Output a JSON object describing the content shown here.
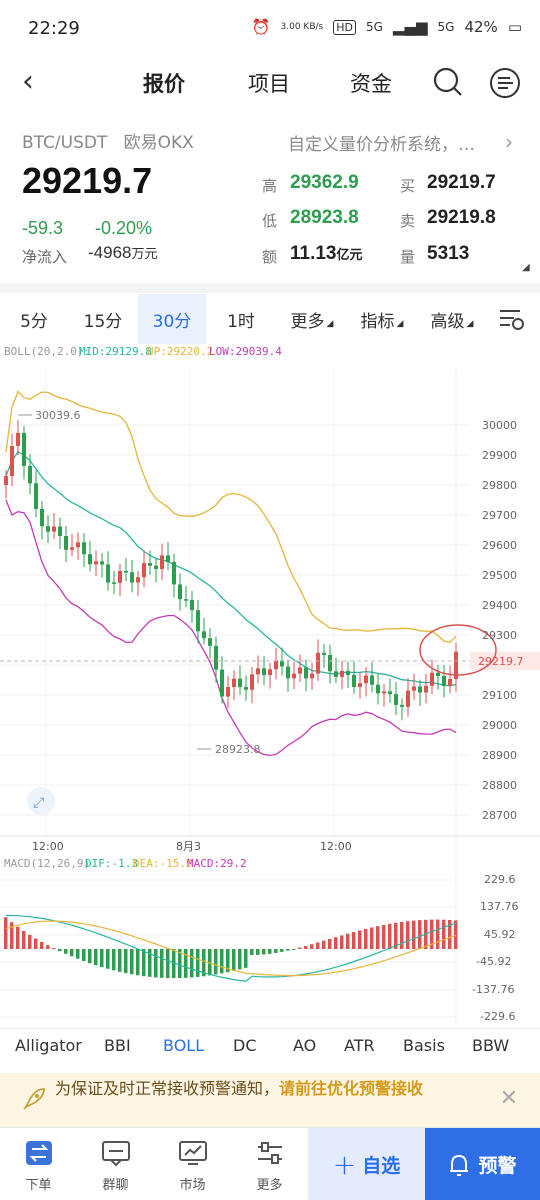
{
  "status": {
    "time": "22:29",
    "speed": "3.00 KB/s",
    "hd": "HD",
    "sig1": "5G",
    "sig2": "5G",
    "battery": "42%"
  },
  "nav": {
    "tabs": [
      "报价",
      "项目",
      "资金"
    ]
  },
  "ticker": {
    "pair": "BTC/USDT",
    "exchange": "欧易OKX",
    "price": "29219.7",
    "change": "-59.3",
    "change_pct": "-0.20%",
    "flow_label": "净流入",
    "flow_value": "-4968",
    "flow_unit": "万元",
    "custom_banner": "自定义量价分析系统，…",
    "high_label": "高",
    "high": "29362.9",
    "low_label": "低",
    "low": "28923.8",
    "amount_label": "额",
    "amount": "11.13",
    "amount_unit": "亿元",
    "buy_label": "买",
    "buy": "29219.7",
    "sell_label": "卖",
    "sell": "29219.8",
    "vol_label": "量",
    "vol": "5313"
  },
  "timeframes": {
    "t1": "5分",
    "t2": "15分",
    "t3": "30分",
    "t4": "1时",
    "more": "更多",
    "indicators": "指标",
    "advanced": "高级",
    "active": "30分"
  },
  "boll_legend": {
    "name": "BOLL(20,2.0):",
    "mid": "MID:29129.8",
    "up": "UP:29220.2",
    "low": "LOW:29039.4"
  },
  "chart_labels": {
    "max_marker": "30039.6",
    "min_marker": "28923.8",
    "last_price": "29219.7",
    "y_ticks": [
      "30000",
      "29900",
      "29800",
      "29700",
      "29600",
      "29500",
      "29400",
      "29300",
      "29100",
      "29000",
      "28900",
      "28800",
      "28700"
    ],
    "x_ticks": [
      "12:00",
      "8月3",
      "12:00"
    ]
  },
  "macd_legend": {
    "name": "MACD(12,26,9)",
    "dif": "DIF:-1.3",
    "dea": "DEA:-15.9",
    "macd": "MACD:29.2"
  },
  "macd_ticks": [
    "229.6",
    "137.76",
    "45.92",
    "-45.92",
    "-137.76",
    "-229.6"
  ],
  "indicator_tabs": [
    "Alligator",
    "BBI",
    "BOLL",
    "DC",
    "AO",
    "ATR",
    "Basis",
    "BBW"
  ],
  "active_indicator": "BOLL",
  "notice": {
    "text": "为保证及时正常接收预警通知，",
    "link": "请前往优化预警接收"
  },
  "bottom": {
    "order": "下单",
    "group": "群聊",
    "market": "市场",
    "more": "更多",
    "watch": "自选",
    "alert": "预警"
  },
  "colors": {
    "up": "#d9534f",
    "down": "#2e9d4f",
    "mid": "#2bb5a0",
    "upper": "#e5b53a",
    "lower": "#c23bb5",
    "accent": "#2a6ee8"
  },
  "chart_data": {
    "type": "candlestick",
    "indicators": [
      "BOLL",
      "MACD"
    ],
    "price_axis": {
      "ticks": [
        30000,
        29900,
        29800,
        29700,
        29600,
        29500,
        29400,
        29300,
        29100,
        29000,
        28900,
        28800,
        28700
      ]
    },
    "high_marker": 30039.6,
    "low_marker": 28923.8,
    "last": 29219.7,
    "boll": {
      "mid": 29129.8,
      "up": 29220.2,
      "low": 29039.4
    },
    "macd": {
      "dif": -1.3,
      "dea": -15.9,
      "macd": 29.2
    }
  }
}
